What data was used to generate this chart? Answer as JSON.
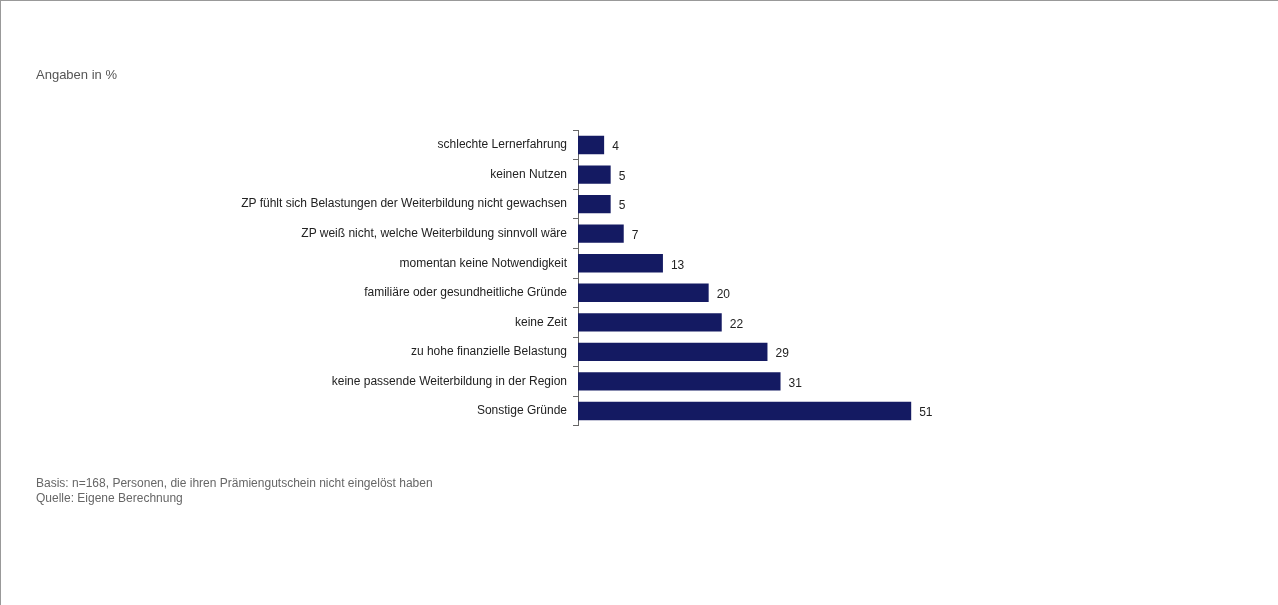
{
  "chart_data": {
    "type": "bar",
    "orientation": "horizontal",
    "title": "Angaben in %",
    "categories": [
      "schlechte Lernerfahrung",
      "keinen Nutzen",
      "ZP fühlt sich Belastungen der Weiterbildung nicht gewachsen",
      "ZP weiß nicht, welche Weiterbildung sinnvoll wäre",
      "momentan keine Notwendigkeit",
      "familiäre oder gesundheitliche Gründe",
      "keine Zeit",
      "zu hohe finanzielle Belastung",
      "keine passende Weiterbildung in der Region",
      "Sonstige Gründe"
    ],
    "values": [
      4,
      5,
      5,
      7,
      13,
      20,
      22,
      29,
      31,
      51
    ],
    "color": "#141a62",
    "data_labels": true,
    "legend": false,
    "tick_labels": "y",
    "annotations": [
      "Basis: n=168, Personen, die ihren Prämiengutschein nicht eingelöst haben",
      "Quelle: Eigene Berechnung"
    ]
  }
}
